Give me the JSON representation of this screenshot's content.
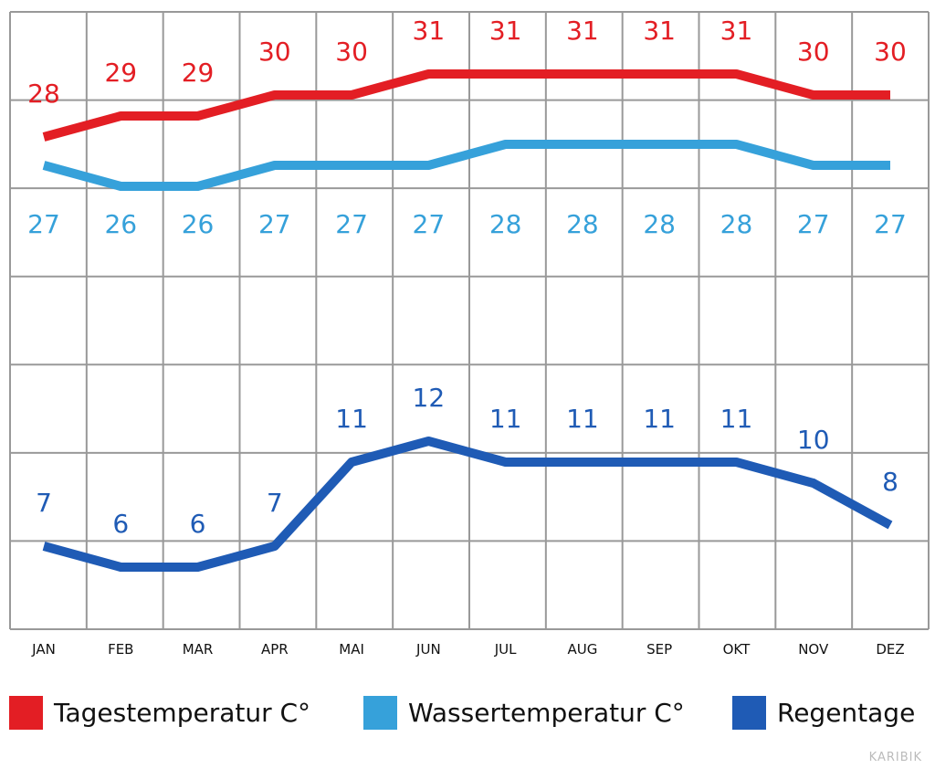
{
  "chart_data": {
    "type": "line",
    "categories": [
      "JAN",
      "FEB",
      "MAR",
      "APR",
      "MAI",
      "JUN",
      "JUL",
      "AUG",
      "SEP",
      "OKT",
      "NOV",
      "DEZ"
    ],
    "series": [
      {
        "name": "Tagestemperatur C°",
        "color": "#e31e24",
        "values": [
          28,
          29,
          29,
          30,
          30,
          31,
          31,
          31,
          31,
          31,
          30,
          30
        ]
      },
      {
        "name": "Wassertemperatur C°",
        "color": "#36a1da",
        "values": [
          27,
          26,
          26,
          27,
          27,
          27,
          28,
          28,
          28,
          28,
          27,
          27
        ]
      },
      {
        "name": "Regentage",
        "color": "#1f5bb5",
        "values": [
          7,
          6,
          6,
          7,
          11,
          12,
          11,
          11,
          11,
          11,
          10,
          8
        ]
      }
    ],
    "grid": true,
    "legend_position": "bottom"
  },
  "legend": [
    "Tagestemperatur C°",
    "Wassertemperatur C°",
    "Regentage"
  ],
  "watermark": "KARIBIK"
}
